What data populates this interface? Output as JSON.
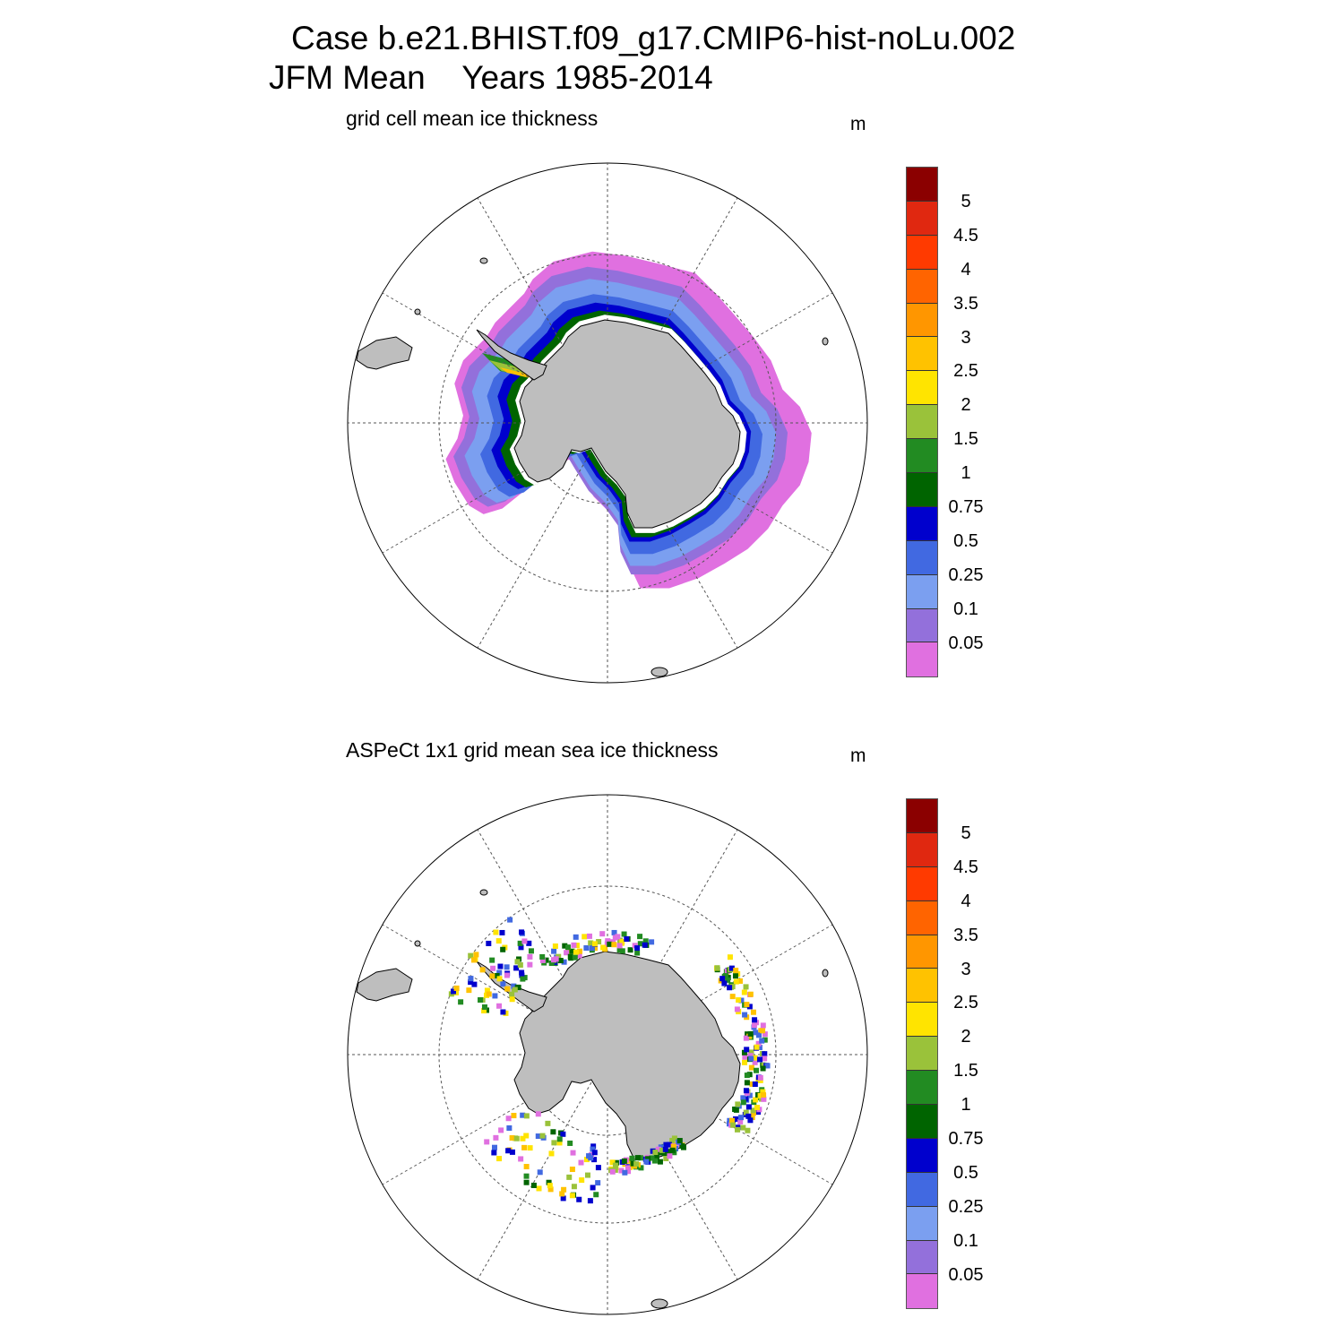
{
  "title": {
    "line1": "Case b.e21.BHIST.f09_g17.CMIP6-hist-noLu.002",
    "line2": "JFM Mean    Years 1985-2014"
  },
  "panels": [
    {
      "subtitle": "grid cell mean ice thickness",
      "units": "m"
    },
    {
      "subtitle": "ASPeCt 1x1 grid mean sea ice thickness",
      "units": "m"
    }
  ],
  "colorbar": {
    "labels": [
      "5",
      "4.5",
      "4",
      "3.5",
      "3",
      "2.5",
      "2",
      "1.5",
      "1",
      "0.75",
      "0.5",
      "0.25",
      "0.1",
      "0.05"
    ],
    "colors_top_to_bottom": [
      "#8b0000",
      "#e02810",
      "#ff3a00",
      "#ff6400",
      "#ff9600",
      "#ffc200",
      "#ffe400",
      "#9ac23a",
      "#228b22",
      "#006400",
      "#0000cd",
      "#4169e1",
      "#7b9ff0",
      "#9370db",
      "#e070e0"
    ]
  },
  "map_style": {
    "land_color": "#bebebe",
    "projection": "south polar stereographic",
    "grid": "dashed meridians every 30°, dashed latitude circles"
  }
}
